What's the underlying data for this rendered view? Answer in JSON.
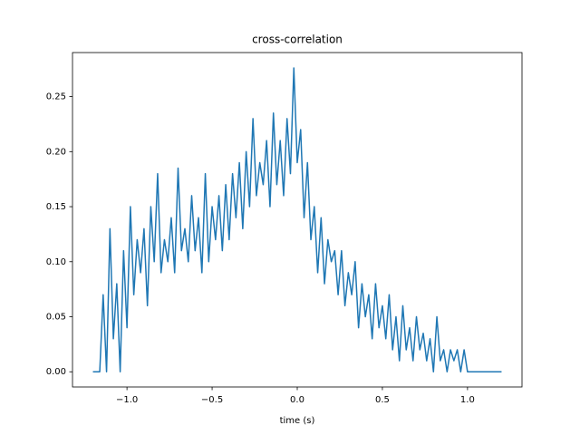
{
  "chart_data": {
    "type": "line",
    "title": "cross-correlation",
    "xlabel": "time (s)",
    "x": [
      -1.2,
      -1.18,
      -1.16,
      -1.14,
      -1.12,
      -1.1,
      -1.08,
      -1.06,
      -1.04,
      -1.02,
      -1.0,
      -0.98,
      -0.96,
      -0.94,
      -0.92,
      -0.9,
      -0.88,
      -0.86,
      -0.84,
      -0.82,
      -0.8,
      -0.78,
      -0.76,
      -0.74,
      -0.72,
      -0.7,
      -0.68,
      -0.66,
      -0.64,
      -0.62,
      -0.6,
      -0.58,
      -0.56,
      -0.54,
      -0.52,
      -0.5,
      -0.48,
      -0.46,
      -0.44,
      -0.42,
      -0.4,
      -0.38,
      -0.36,
      -0.34,
      -0.32,
      -0.3,
      -0.28,
      -0.26,
      -0.24,
      -0.22,
      -0.2,
      -0.18,
      -0.16,
      -0.14,
      -0.12,
      -0.1,
      -0.08,
      -0.06,
      -0.04,
      -0.02,
      0.0,
      0.02,
      0.04,
      0.06,
      0.08,
      0.1,
      0.12,
      0.14,
      0.16,
      0.18,
      0.2,
      0.22,
      0.24,
      0.26,
      0.28,
      0.3,
      0.32,
      0.34,
      0.36,
      0.38,
      0.4,
      0.42,
      0.44,
      0.46,
      0.48,
      0.5,
      0.52,
      0.54,
      0.56,
      0.58,
      0.6,
      0.62,
      0.64,
      0.66,
      0.68,
      0.7,
      0.72,
      0.74,
      0.76,
      0.78,
      0.8,
      0.82,
      0.84,
      0.86,
      0.88,
      0.9,
      0.92,
      0.94,
      0.96,
      0.98,
      1.0,
      1.02,
      1.04,
      1.06,
      1.08,
      1.1,
      1.12,
      1.14,
      1.16,
      1.18,
      1.2
    ],
    "series": [
      {
        "color": "#1f77b4",
        "values": [
          0,
          0,
          0,
          0.07,
          0,
          0.13,
          0.03,
          0.08,
          0,
          0.11,
          0.04,
          0.15,
          0.07,
          0.12,
          0.09,
          0.13,
          0.06,
          0.15,
          0.1,
          0.18,
          0.09,
          0.12,
          0.1,
          0.14,
          0.09,
          0.185,
          0.11,
          0.13,
          0.1,
          0.16,
          0.11,
          0.14,
          0.09,
          0.18,
          0.1,
          0.15,
          0.12,
          0.16,
          0.11,
          0.17,
          0.12,
          0.18,
          0.14,
          0.19,
          0.13,
          0.2,
          0.15,
          0.23,
          0.16,
          0.19,
          0.17,
          0.21,
          0.15,
          0.235,
          0.17,
          0.21,
          0.16,
          0.23,
          0.18,
          0.276,
          0.19,
          0.22,
          0.14,
          0.19,
          0.12,
          0.15,
          0.09,
          0.14,
          0.08,
          0.12,
          0.1,
          0.11,
          0.07,
          0.11,
          0.06,
          0.09,
          0.07,
          0.1,
          0.04,
          0.08,
          0.05,
          0.07,
          0.03,
          0.08,
          0.04,
          0.06,
          0.03,
          0.07,
          0.02,
          0.05,
          0.01,
          0.06,
          0.02,
          0.04,
          0.01,
          0.05,
          0.02,
          0.035,
          0.01,
          0.03,
          0,
          0.05,
          0.01,
          0.02,
          0,
          0.02,
          0.01,
          0.02,
          0,
          0.02,
          0,
          0,
          0,
          0,
          0,
          0,
          0,
          0,
          0,
          0,
          0
        ]
      }
    ],
    "xlim": [
      -1.32,
      1.32
    ],
    "ylim": [
      -0.0138,
      0.29
    ],
    "xticks": [
      {
        "value": -1.0,
        "label": "−1.0"
      },
      {
        "value": -0.5,
        "label": "−0.5"
      },
      {
        "value": 0.0,
        "label": "0.0"
      },
      {
        "value": 0.5,
        "label": "0.5"
      },
      {
        "value": 1.0,
        "label": "1.0"
      }
    ],
    "yticks": [
      {
        "value": 0,
        "label": "0.00"
      },
      {
        "value": 0.05,
        "label": "0.05"
      },
      {
        "value": 0.1,
        "label": "0.10"
      },
      {
        "value": 0.15,
        "label": "0.15"
      },
      {
        "value": 0.2,
        "label": "0.20"
      },
      {
        "value": 0.25,
        "label": "0.25"
      }
    ]
  }
}
